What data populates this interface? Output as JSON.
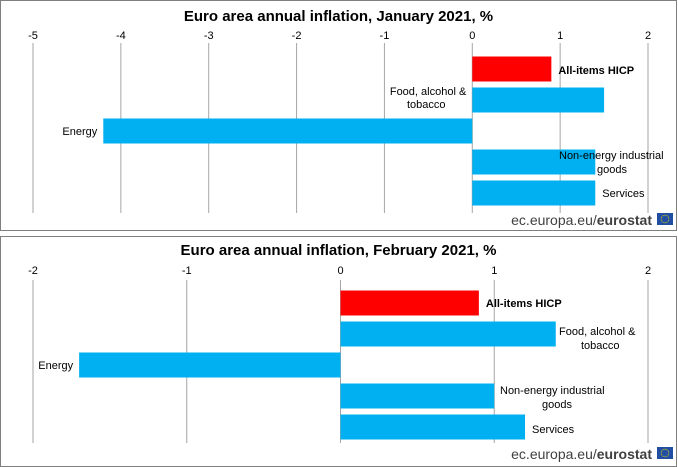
{
  "colors": {
    "highlight": "#ff0000",
    "bar": "#00b0f0",
    "flag": "#1f4ea3",
    "flag_stars": "#ffdd00"
  },
  "source": {
    "prefix": "ec.europa.eu/",
    "brand": "eurostat",
    "icon": "eu-flag-icon"
  },
  "chart_data": [
    {
      "type": "bar",
      "orientation": "horizontal",
      "title": "Euro area annual inflation, January 2021, %",
      "xlim": [
        -5,
        2
      ],
      "ticks": [
        "-5",
        "-4",
        "-3",
        "-2",
        "-1",
        "0",
        "1",
        "2"
      ],
      "grid": true,
      "categories": [
        "All-items HICP",
        "Food, alcohol & tobacco",
        "Energy",
        "Non-energy industrial goods",
        "Services"
      ],
      "values": [
        0.9,
        1.5,
        -4.2,
        1.4,
        1.4
      ],
      "highlight": [
        true,
        false,
        false,
        false,
        false
      ]
    },
    {
      "type": "bar",
      "orientation": "horizontal",
      "title": "Euro area annual inflation, February 2021, %",
      "xlim": [
        -2,
        2
      ],
      "ticks": [
        "-2",
        "-1",
        "0",
        "1",
        "2"
      ],
      "grid": true,
      "categories": [
        "All-items HICP",
        "Food, alcohol & tobacco",
        "Energy",
        "Non-energy industrial goods",
        "Services"
      ],
      "values": [
        0.9,
        1.4,
        -1.7,
        1.0,
        1.2
      ],
      "highlight": [
        true,
        false,
        false,
        false,
        false
      ]
    }
  ]
}
